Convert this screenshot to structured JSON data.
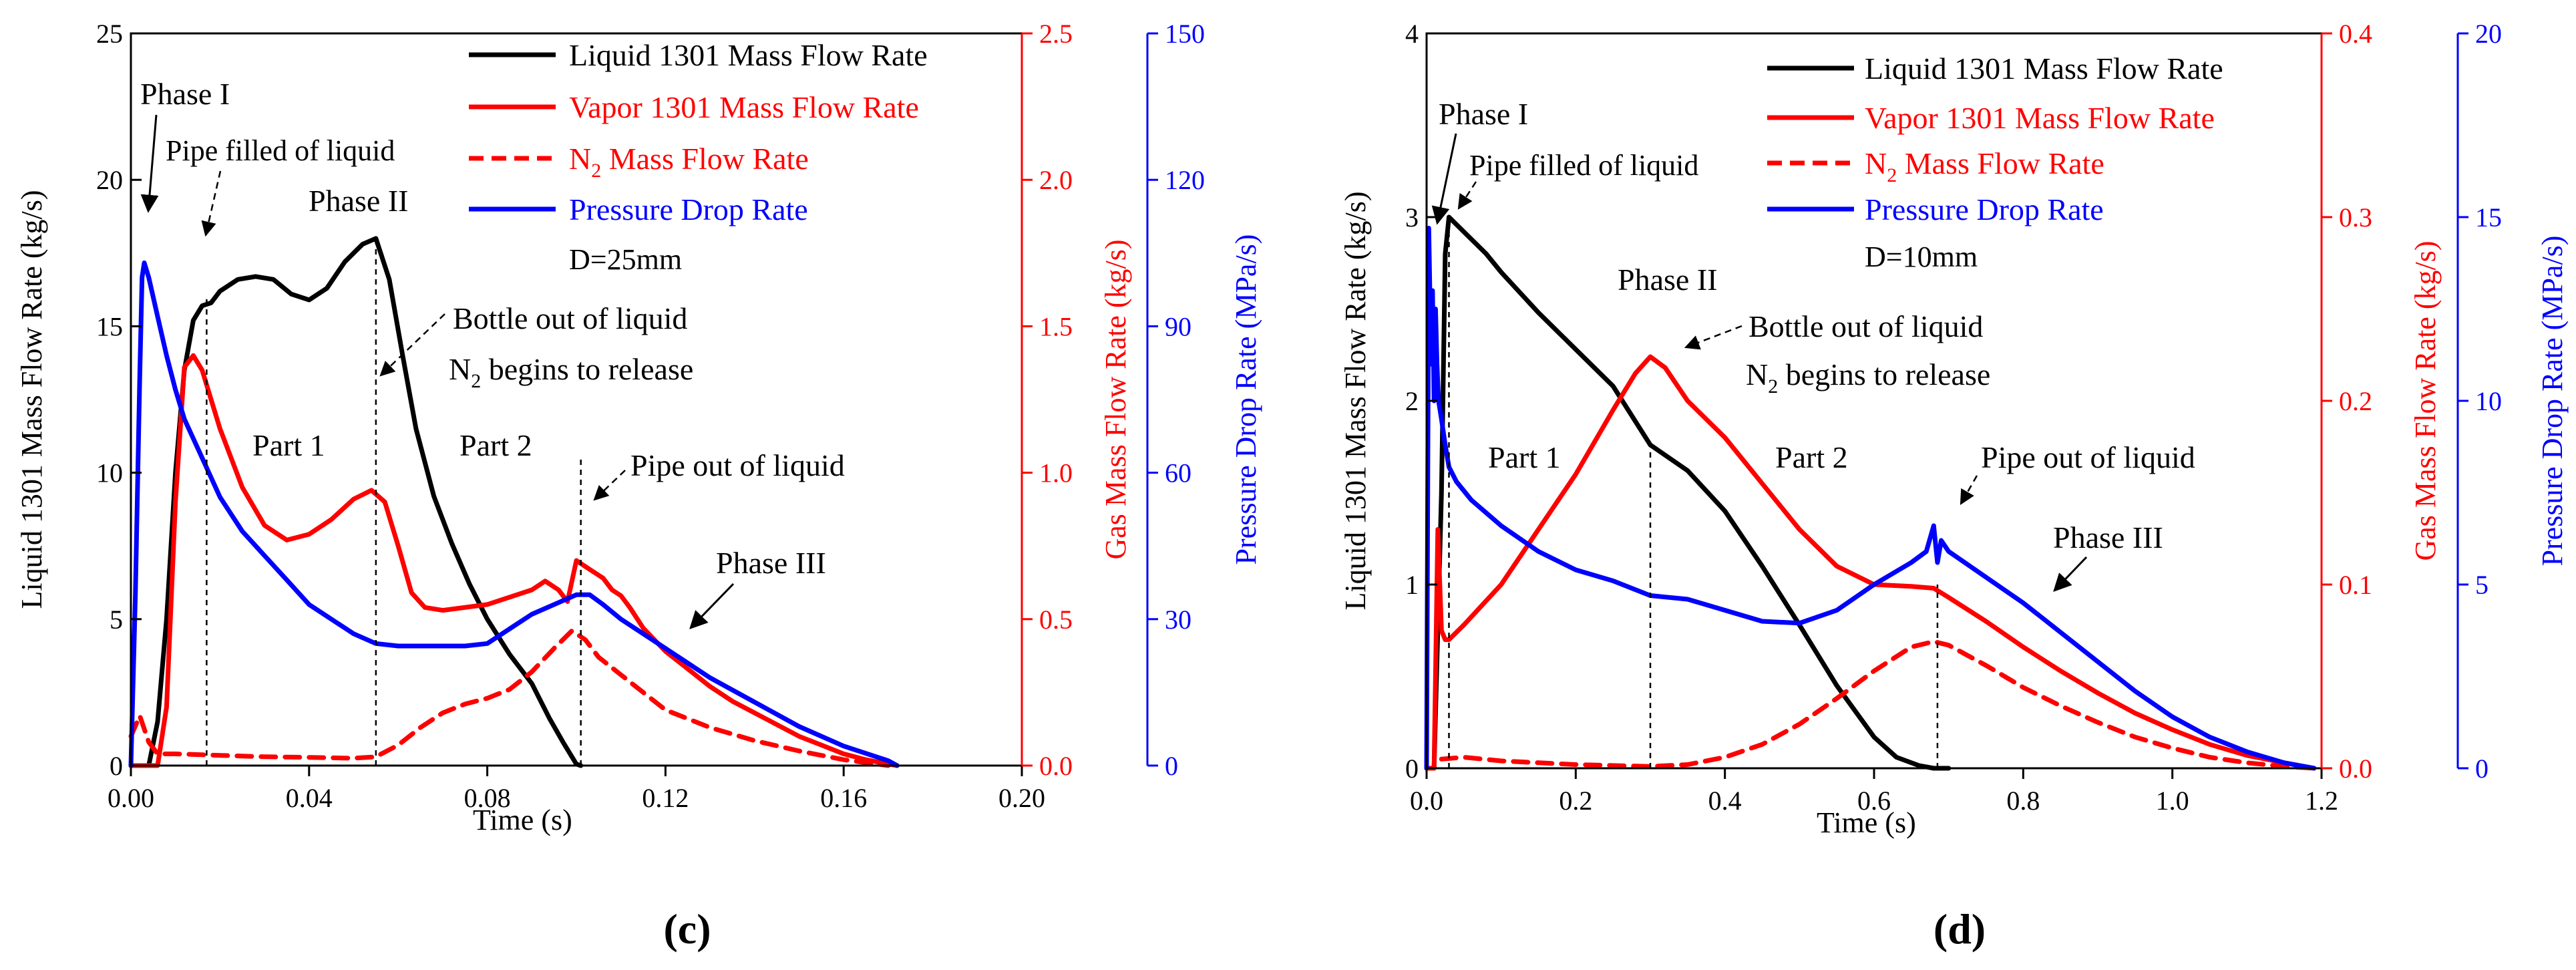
{
  "chart_data": [
    {
      "id": "c",
      "type": "line",
      "caption": "(c)",
      "xlabel": "Time (s)",
      "xlim": [
        0,
        0.2
      ],
      "xticks": [
        "0.00",
        "0.04",
        "0.08",
        "0.12",
        "0.16",
        "0.20"
      ],
      "axes": {
        "left": {
          "label": "Liquid 1301 Mass Flow Rate (kg/s)",
          "lim": [
            0,
            25
          ],
          "ticks": [
            "0",
            "5",
            "10",
            "15",
            "20",
            "25"
          ],
          "color": "#000000"
        },
        "right1": {
          "label": "Gas Mass Flow Rate (kg/s)",
          "lim": [
            0,
            2.5
          ],
          "ticks": [
            "0.0",
            "0.5",
            "1.0",
            "1.5",
            "2.0",
            "2.5"
          ],
          "color": "#ff0000"
        },
        "right2": {
          "label": "Pressure Drop Rate (MPa/s)",
          "lim": [
            0,
            150
          ],
          "ticks": [
            "0",
            "30",
            "60",
            "90",
            "120",
            "150"
          ],
          "color": "#0000ff"
        }
      },
      "legend": {
        "placement": "top-right",
        "entries": [
          {
            "label": "Liquid 1301 Mass Flow Rate",
            "color": "#000000",
            "dash": false
          },
          {
            "label": "Vapor 1301 Mass Flow Rate",
            "color": "#ff0000",
            "dash": false
          },
          {
            "label": "N",
            "sub": "2",
            "suffix": " Mass Flow Rate",
            "color": "#ff0000",
            "dash": true
          },
          {
            "label": "Pressure Drop Rate",
            "color": "#0000ff",
            "dash": false
          }
        ],
        "note": "D=25mm"
      },
      "series": [
        {
          "name": "Liquid 1301 Mass Flow Rate",
          "axis": "left",
          "color": "#000000",
          "dash": false,
          "x": [
            0,
            0.004,
            0.006,
            0.008,
            0.01,
            0.012,
            0.014,
            0.016,
            0.018,
            0.02,
            0.024,
            0.028,
            0.032,
            0.036,
            0.04,
            0.044,
            0.048,
            0.052,
            0.055,
            0.058,
            0.061,
            0.064,
            0.068,
            0.072,
            0.076,
            0.08,
            0.085,
            0.09,
            0.094,
            0.097,
            0.099,
            0.1,
            0.101
          ],
          "y": [
            0,
            0,
            1.5,
            5,
            10,
            13.5,
            15.2,
            15.7,
            15.8,
            16.2,
            16.6,
            16.7,
            16.6,
            16.1,
            15.9,
            16.3,
            17.2,
            17.8,
            18.0,
            16.6,
            14.0,
            11.5,
            9.2,
            7.6,
            6.2,
            5.0,
            3.8,
            2.8,
            1.6,
            0.8,
            0.3,
            0.05,
            0
          ]
        },
        {
          "name": "Vapor 1301 Mass Flow Rate",
          "axis": "right1",
          "color": "#ff0000",
          "dash": false,
          "x": [
            0,
            0.006,
            0.008,
            0.01,
            0.012,
            0.014,
            0.016,
            0.02,
            0.025,
            0.03,
            0.035,
            0.04,
            0.045,
            0.05,
            0.054,
            0.057,
            0.06,
            0.063,
            0.066,
            0.07,
            0.08,
            0.09,
            0.093,
            0.096,
            0.098,
            0.1,
            0.102,
            0.104,
            0.106,
            0.108,
            0.11,
            0.112,
            0.115,
            0.12,
            0.125,
            0.13,
            0.135,
            0.14,
            0.145,
            0.15,
            0.155,
            0.16,
            0.165,
            0.17,
            0.172
          ],
          "y": [
            0,
            0,
            0.2,
            0.9,
            1.36,
            1.4,
            1.35,
            1.15,
            0.95,
            0.82,
            0.77,
            0.79,
            0.84,
            0.91,
            0.94,
            0.9,
            0.75,
            0.59,
            0.54,
            0.53,
            0.55,
            0.6,
            0.63,
            0.6,
            0.56,
            0.7,
            0.68,
            0.66,
            0.64,
            0.6,
            0.58,
            0.54,
            0.47,
            0.39,
            0.33,
            0.27,
            0.22,
            0.18,
            0.14,
            0.1,
            0.07,
            0.04,
            0.02,
            0.005,
            0
          ]
        },
        {
          "name": "N2 Mass Flow Rate",
          "axis": "right1",
          "color": "#ff0000",
          "dash": true,
          "x": [
            0,
            0.002,
            0.004,
            0.006,
            0.01,
            0.02,
            0.03,
            0.04,
            0.05,
            0.055,
            0.06,
            0.065,
            0.07,
            0.075,
            0.08,
            0.085,
            0.09,
            0.095,
            0.099,
            0.102,
            0.105,
            0.11,
            0.115,
            0.12,
            0.13,
            0.14,
            0.15,
            0.16,
            0.17
          ],
          "y": [
            0.1,
            0.17,
            0.08,
            0.04,
            0.04,
            0.035,
            0.03,
            0.028,
            0.025,
            0.03,
            0.07,
            0.13,
            0.18,
            0.21,
            0.23,
            0.26,
            0.32,
            0.4,
            0.46,
            0.43,
            0.37,
            0.31,
            0.25,
            0.19,
            0.13,
            0.085,
            0.05,
            0.02,
            0
          ]
        },
        {
          "name": "Pressure Drop Rate",
          "axis": "right2",
          "color": "#0000ff",
          "dash": false,
          "x": [
            0,
            0.001,
            0.002,
            0.0025,
            0.003,
            0.004,
            0.006,
            0.008,
            0.01,
            0.012,
            0.015,
            0.02,
            0.025,
            0.03,
            0.035,
            0.04,
            0.045,
            0.05,
            0.055,
            0.06,
            0.065,
            0.07,
            0.075,
            0.08,
            0.085,
            0.09,
            0.095,
            0.1,
            0.103,
            0.106,
            0.11,
            0.12,
            0.13,
            0.14,
            0.15,
            0.16,
            0.17,
            0.172
          ],
          "y": [
            0,
            35,
            80,
            100,
            103,
            100,
            92,
            84,
            77,
            71,
            65,
            55,
            48,
            43,
            38,
            33,
            30,
            27,
            25,
            24.5,
            24.5,
            24.5,
            24.5,
            25,
            28,
            31,
            33,
            35,
            35,
            33,
            30,
            24,
            18,
            13,
            8,
            4,
            1,
            0
          ]
        }
      ],
      "markers": [
        {
          "x": 0.017,
          "ymax": 16,
          "axis": "left"
        },
        {
          "x": 0.055,
          "ymax": 18,
          "axis": "left"
        },
        {
          "x": 0.101,
          "ymax": 10.5,
          "axis": "left"
        }
      ],
      "annotations": {
        "phase1": "Phase I",
        "pipe_filled": "Pipe filled of liquid",
        "phase2": "Phase II",
        "bottle_out": "Bottle out of liquid",
        "n2_release_pre": "N",
        "n2_release_sub": "2",
        "n2_release_post": " begins to release",
        "part1": "Part 1",
        "part2": "Part 2",
        "pipe_out": "Pipe out of liquid",
        "phase3": "Phase III"
      }
    },
    {
      "id": "d",
      "type": "line",
      "caption": "(d)",
      "xlabel": "Time (s)",
      "xlim": [
        0,
        1.2
      ],
      "xticks": [
        "0.0",
        "0.2",
        "0.4",
        "0.6",
        "0.8",
        "1.0",
        "1.2"
      ],
      "axes": {
        "left": {
          "label": "Liquid 1301 Mass Flow Rate (kg/s)",
          "lim": [
            0,
            4
          ],
          "ticks": [
            "0",
            "1",
            "2",
            "3",
            "4"
          ],
          "color": "#000000"
        },
        "right1": {
          "label": "Gas Mass Flow Rate (kg/s)",
          "lim": [
            0,
            0.4
          ],
          "ticks": [
            "0.0",
            "0.1",
            "0.2",
            "0.3",
            "0.4"
          ],
          "color": "#ff0000"
        },
        "right2": {
          "label": "Pressure Drop Rate (MPa/s)",
          "lim": [
            0,
            20
          ],
          "ticks": [
            "0",
            "5",
            "10",
            "15",
            "20"
          ],
          "color": "#0000ff"
        }
      },
      "legend": {
        "placement": "top-right",
        "entries": [
          {
            "label": "Liquid 1301 Mass Flow Rate",
            "color": "#000000",
            "dash": false
          },
          {
            "label": "Vapor 1301 Mass Flow Rate",
            "color": "#ff0000",
            "dash": false
          },
          {
            "label": "N",
            "sub": "2",
            "suffix": " Mass Flow Rate",
            "color": "#ff0000",
            "dash": true
          },
          {
            "label": "Pressure Drop Rate",
            "color": "#0000ff",
            "dash": false
          }
        ],
        "note": "D=10mm"
      },
      "series": [
        {
          "name": "Liquid 1301 Mass Flow Rate",
          "axis": "left",
          "color": "#000000",
          "dash": false,
          "x": [
            0,
            0.01,
            0.02,
            0.025,
            0.03,
            0.05,
            0.08,
            0.1,
            0.15,
            0.2,
            0.25,
            0.3,
            0.35,
            0.4,
            0.45,
            0.5,
            0.55,
            0.6,
            0.63,
            0.66,
            0.68,
            0.7
          ],
          "y": [
            0,
            0,
            1.5,
            2.8,
            3.0,
            2.92,
            2.8,
            2.7,
            2.48,
            2.28,
            2.08,
            1.76,
            1.62,
            1.4,
            1.1,
            0.78,
            0.45,
            0.17,
            0.06,
            0.015,
            0,
            0
          ]
        },
        {
          "name": "Vapor 1301 Mass Flow Rate",
          "axis": "right1",
          "color": "#ff0000",
          "dash": false,
          "x": [
            0,
            0.01,
            0.015,
            0.02,
            0.025,
            0.03,
            0.05,
            0.1,
            0.15,
            0.2,
            0.25,
            0.28,
            0.3,
            0.32,
            0.35,
            0.4,
            0.45,
            0.5,
            0.55,
            0.6,
            0.65,
            0.68,
            0.7,
            0.75,
            0.8,
            0.85,
            0.9,
            0.95,
            1.0,
            1.05,
            1.1,
            1.15,
            1.19
          ],
          "y": [
            0,
            0,
            0.13,
            0.075,
            0.07,
            0.07,
            0.078,
            0.1,
            0.13,
            0.16,
            0.195,
            0.215,
            0.224,
            0.218,
            0.2,
            0.18,
            0.155,
            0.13,
            0.11,
            0.1,
            0.099,
            0.098,
            0.093,
            0.08,
            0.066,
            0.053,
            0.041,
            0.03,
            0.021,
            0.013,
            0.007,
            0.003,
            0
          ]
        },
        {
          "name": "N2 Mass Flow Rate",
          "axis": "right1",
          "color": "#ff0000",
          "dash": true,
          "x": [
            0.02,
            0.05,
            0.1,
            0.2,
            0.3,
            0.35,
            0.4,
            0.45,
            0.5,
            0.55,
            0.6,
            0.65,
            0.68,
            0.7,
            0.75,
            0.8,
            0.85,
            0.9,
            0.95,
            1.0,
            1.05,
            1.1,
            1.15,
            1.19
          ],
          "y": [
            0.005,
            0.006,
            0.004,
            0.002,
            0.001,
            0.002,
            0.006,
            0.013,
            0.024,
            0.038,
            0.053,
            0.066,
            0.069,
            0.067,
            0.056,
            0.044,
            0.034,
            0.025,
            0.017,
            0.011,
            0.006,
            0.003,
            0.001,
            0
          ]
        },
        {
          "name": "Pressure Drop Rate",
          "axis": "right2",
          "color": "#0000ff",
          "dash": false,
          "x": [
            0,
            0.003,
            0.006,
            0.008,
            0.01,
            0.012,
            0.014,
            0.016,
            0.02,
            0.025,
            0.03,
            0.04,
            0.06,
            0.1,
            0.15,
            0.2,
            0.25,
            0.3,
            0.35,
            0.4,
            0.45,
            0.5,
            0.55,
            0.6,
            0.65,
            0.67,
            0.68,
            0.685,
            0.69,
            0.7,
            0.75,
            0.8,
            0.85,
            0.9,
            0.95,
            1.0,
            1.05,
            1.1,
            1.15,
            1.19
          ],
          "y": [
            0,
            14.7,
            11,
            13,
            10,
            12.5,
            11,
            10,
            9.5,
            8.8,
            8.2,
            7.8,
            7.3,
            6.6,
            5.9,
            5.4,
            5.1,
            4.7,
            4.6,
            4.3,
            4.0,
            3.95,
            4.3,
            5.0,
            5.6,
            5.9,
            6.6,
            5.6,
            6.2,
            5.9,
            5.2,
            4.5,
            3.7,
            2.9,
            2.1,
            1.4,
            0.85,
            0.45,
            0.15,
            0
          ]
        }
      ],
      "markers": [
        {
          "x": 0.03,
          "ymax": 3.0,
          "axis": "left"
        },
        {
          "x": 0.3,
          "ymax": 1.76,
          "axis": "left"
        },
        {
          "x": 0.685,
          "ymax": 1.0,
          "axis": "left"
        }
      ],
      "annotations": {
        "phase1": "Phase I",
        "pipe_filled": "Pipe filled of liquid",
        "phase2": "Phase II",
        "bottle_out": "Bottle out of liquid",
        "n2_release_pre": "N",
        "n2_release_sub": "2",
        "n2_release_post": " begins to release",
        "part1": "Part 1",
        "part2": "Part 2",
        "pipe_out": "Pipe out of liquid",
        "phase3": "Phase III"
      }
    }
  ]
}
